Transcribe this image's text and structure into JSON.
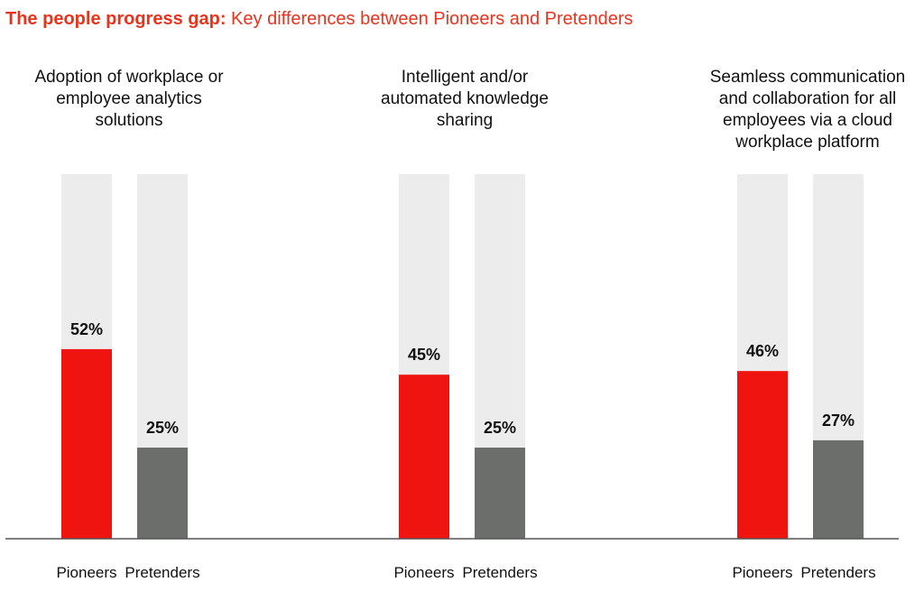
{
  "title_bold": "The people progress gap:",
  "title_rest": "Key differences between Pioneers and Pretenders",
  "colors": {
    "accent": "#e8341c",
    "pioneers": "#f01410",
    "pretenders": "#6b6e6a",
    "track": "#ececec",
    "axis": "#555555"
  },
  "chart_data": {
    "type": "bar",
    "groups": [
      {
        "caption": "Adoption of workplace or employee analytics solutions",
        "pioneers": 52,
        "pretenders": 25,
        "pioneers_label": "52%",
        "pretenders_label": "25%"
      },
      {
        "caption": "Intelligent and/or automated knowledge sharing",
        "pioneers": 45,
        "pretenders": 25,
        "pioneers_label": "45%",
        "pretenders_label": "25%"
      },
      {
        "caption": "Seamless communication and collaboration for all employees via a cloud workplace platform",
        "pioneers": 46,
        "pretenders": 27,
        "pioneers_label": "46%",
        "pretenders_label": "27%"
      }
    ],
    "categories": [
      "Pioneers",
      "Pretenders"
    ],
    "ylim": [
      0,
      100
    ]
  }
}
